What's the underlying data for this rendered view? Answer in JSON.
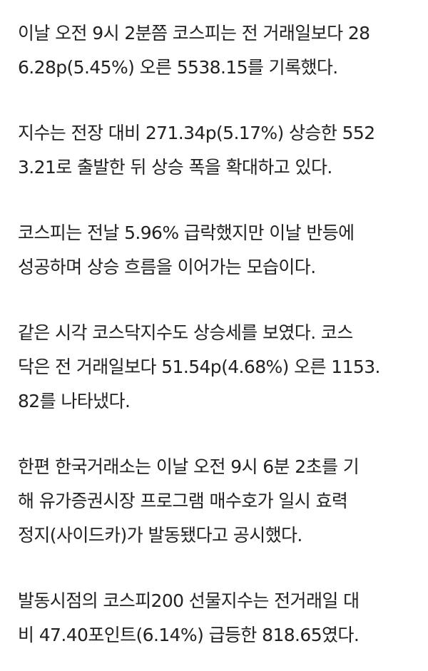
{
  "article": {
    "paragraphs": [
      {
        "lines": [
          "이날 오전 9시 2분쯤 코스피는 전 거래일보다 28",
          "6.28p(5.45%) 오른 5538.15를 기록했다."
        ]
      },
      {
        "lines": [
          "지수는 전장 대비 271.34p(5.17%) 상승한 552",
          "3.21로 출발한 뒤 상승 폭을 확대하고 있다."
        ]
      },
      {
        "lines": [
          "코스피는 전날 5.96% 급락했지만 이날 반등에",
          "성공하며 상승 흐름을 이어가는 모습이다."
        ]
      },
      {
        "lines": [
          "같은 시각 코스닥지수도 상승세를 보였다. 코스",
          "닥은 전 거래일보다 51.54p(4.68%) 오른 1153.",
          "82를 나타냈다."
        ]
      },
      {
        "lines": [
          "한편 한국거래소는 이날 오전 9시 6분 2초를 기",
          "해 유가증권시장 프로그램 매수호가 일시 효력",
          "정지(사이드카)가 발동됐다고 공시했다."
        ]
      },
      {
        "lines": [
          "발동시점의 코스피200 선물지수는 전거래일 대",
          "비 47.40포인트(6.14%) 급등한 818.65였다."
        ]
      }
    ]
  },
  "colors": {
    "text": "#222222",
    "background": "#ffffff"
  }
}
